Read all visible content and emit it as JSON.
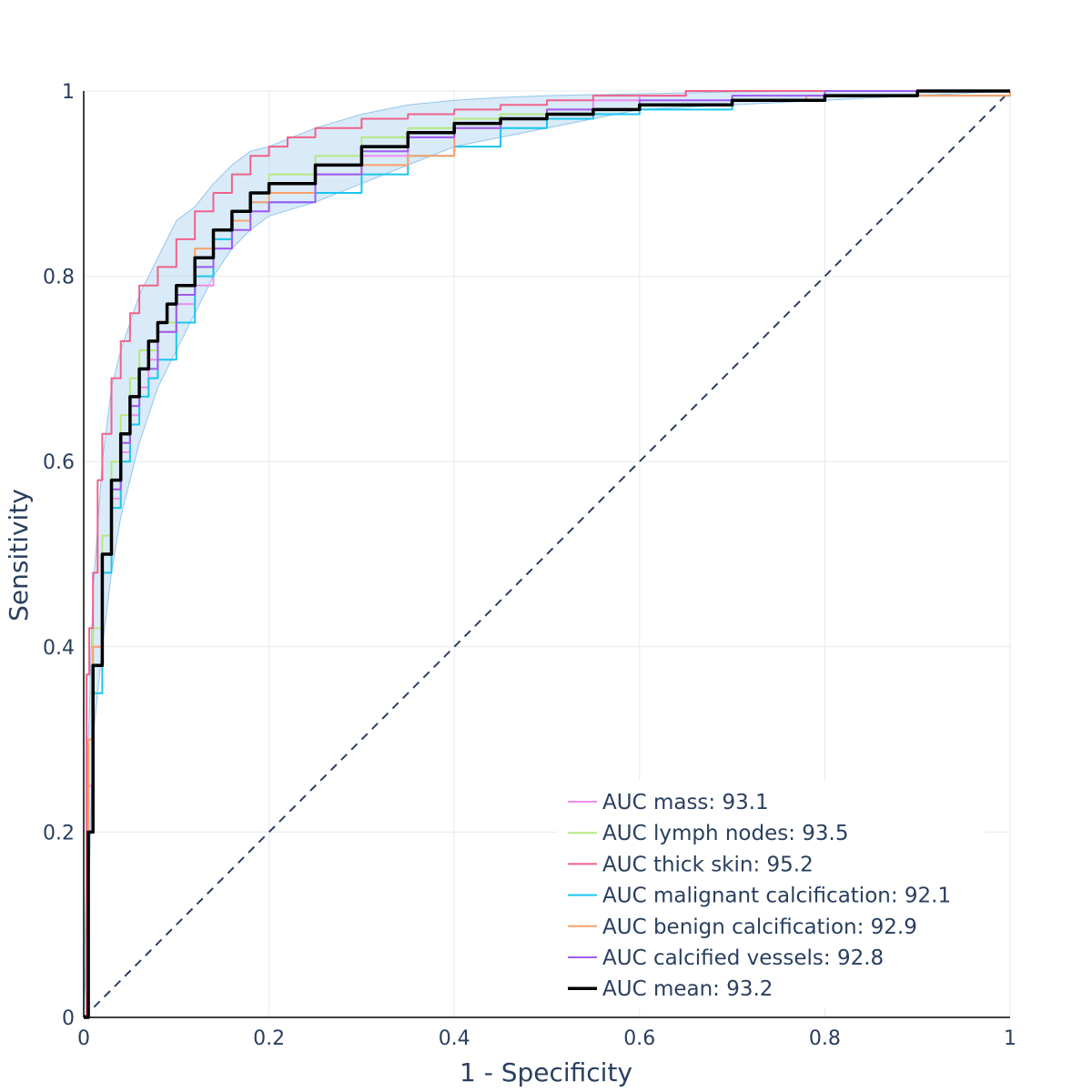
{
  "chart_data": {
    "type": "line",
    "title": "",
    "xlabel": "1 - Specificity",
    "ylabel": "Sensitivity",
    "xlim": [
      0,
      1
    ],
    "ylim": [
      0,
      1
    ],
    "x_ticks": [
      0,
      0.2,
      0.4,
      0.6,
      0.8,
      1
    ],
    "y_ticks": [
      0,
      0.2,
      0.4,
      0.6,
      0.8,
      1
    ],
    "x_tick_labels": [
      "0",
      "0.2",
      "0.4",
      "0.6",
      "0.8",
      "1"
    ],
    "y_tick_labels": [
      "0",
      "0.2",
      "0.4",
      "0.6",
      "0.8",
      "1"
    ],
    "grid": true,
    "legend_position": "bottom-right",
    "series": [
      {
        "name": "AUC mass: 93.1",
        "color": "#f18cf0",
        "points": [
          [
            0,
            0
          ],
          [
            0.005,
            0.25
          ],
          [
            0.01,
            0.4
          ],
          [
            0.02,
            0.5
          ],
          [
            0.03,
            0.56
          ],
          [
            0.04,
            0.61
          ],
          [
            0.05,
            0.65
          ],
          [
            0.06,
            0.68
          ],
          [
            0.07,
            0.71
          ],
          [
            0.08,
            0.74
          ],
          [
            0.1,
            0.77
          ],
          [
            0.12,
            0.79
          ],
          [
            0.14,
            0.83
          ],
          [
            0.16,
            0.86
          ],
          [
            0.18,
            0.87
          ],
          [
            0.2,
            0.88
          ],
          [
            0.25,
            0.91
          ],
          [
            0.3,
            0.93
          ],
          [
            0.35,
            0.95
          ],
          [
            0.4,
            0.96
          ],
          [
            0.45,
            0.97
          ],
          [
            0.5,
            0.98
          ],
          [
            0.55,
            0.99
          ],
          [
            0.6,
            0.995
          ],
          [
            0.65,
            1
          ],
          [
            0.8,
            1
          ],
          [
            1,
            1
          ]
        ]
      },
      {
        "name": "AUC lymph nodes: 93.5",
        "color": "#b6e880",
        "points": [
          [
            0,
            0
          ],
          [
            0.005,
            0.3
          ],
          [
            0.01,
            0.42
          ],
          [
            0.02,
            0.52
          ],
          [
            0.03,
            0.6
          ],
          [
            0.04,
            0.65
          ],
          [
            0.05,
            0.69
          ],
          [
            0.06,
            0.72
          ],
          [
            0.08,
            0.75
          ],
          [
            0.1,
            0.78
          ],
          [
            0.12,
            0.81
          ],
          [
            0.14,
            0.84
          ],
          [
            0.16,
            0.87
          ],
          [
            0.18,
            0.89
          ],
          [
            0.2,
            0.91
          ],
          [
            0.25,
            0.93
          ],
          [
            0.3,
            0.95
          ],
          [
            0.35,
            0.96
          ],
          [
            0.4,
            0.97
          ],
          [
            0.45,
            0.975
          ],
          [
            0.5,
            0.98
          ],
          [
            0.6,
            0.985
          ],
          [
            0.7,
            0.99
          ],
          [
            0.8,
            0.995
          ],
          [
            0.9,
            0.995
          ],
          [
            1,
            1
          ]
        ]
      },
      {
        "name": "AUC thick skin: 95.2",
        "color": "#f0628b",
        "points": [
          [
            0,
            0
          ],
          [
            0.003,
            0.37
          ],
          [
            0.006,
            0.42
          ],
          [
            0.01,
            0.48
          ],
          [
            0.015,
            0.58
          ],
          [
            0.02,
            0.63
          ],
          [
            0.03,
            0.69
          ],
          [
            0.04,
            0.73
          ],
          [
            0.05,
            0.76
          ],
          [
            0.06,
            0.79
          ],
          [
            0.08,
            0.81
          ],
          [
            0.1,
            0.84
          ],
          [
            0.12,
            0.87
          ],
          [
            0.14,
            0.89
          ],
          [
            0.16,
            0.91
          ],
          [
            0.18,
            0.93
          ],
          [
            0.2,
            0.94
          ],
          [
            0.22,
            0.95
          ],
          [
            0.25,
            0.96
          ],
          [
            0.3,
            0.97
          ],
          [
            0.35,
            0.975
          ],
          [
            0.4,
            0.98
          ],
          [
            0.45,
            0.985
          ],
          [
            0.5,
            0.99
          ],
          [
            0.55,
            0.995
          ],
          [
            0.65,
            1
          ],
          [
            1,
            1
          ]
        ]
      },
      {
        "name": "AUC malignant calcification: 92.1",
        "color": "#19c6ef",
        "points": [
          [
            0,
            0
          ],
          [
            0.005,
            0.2
          ],
          [
            0.01,
            0.35
          ],
          [
            0.02,
            0.48
          ],
          [
            0.03,
            0.55
          ],
          [
            0.04,
            0.6
          ],
          [
            0.05,
            0.64
          ],
          [
            0.06,
            0.67
          ],
          [
            0.07,
            0.69
          ],
          [
            0.08,
            0.71
          ],
          [
            0.1,
            0.75
          ],
          [
            0.12,
            0.8
          ],
          [
            0.14,
            0.84
          ],
          [
            0.16,
            0.87
          ],
          [
            0.18,
            0.88
          ],
          [
            0.2,
            0.88
          ],
          [
            0.25,
            0.89
          ],
          [
            0.3,
            0.91
          ],
          [
            0.35,
            0.93
          ],
          [
            0.4,
            0.94
          ],
          [
            0.45,
            0.96
          ],
          [
            0.5,
            0.97
          ],
          [
            0.55,
            0.975
          ],
          [
            0.6,
            0.98
          ],
          [
            0.7,
            0.99
          ],
          [
            0.8,
            0.995
          ],
          [
            1,
            1
          ]
        ]
      },
      {
        "name": "AUC benign calcification: 92.9",
        "color": "#fca16b",
        "points": [
          [
            0,
            0
          ],
          [
            0.005,
            0.3
          ],
          [
            0.01,
            0.4
          ],
          [
            0.02,
            0.5
          ],
          [
            0.03,
            0.57
          ],
          [
            0.04,
            0.62
          ],
          [
            0.05,
            0.66
          ],
          [
            0.06,
            0.7
          ],
          [
            0.08,
            0.74
          ],
          [
            0.1,
            0.79
          ],
          [
            0.12,
            0.83
          ],
          [
            0.14,
            0.85
          ],
          [
            0.16,
            0.86
          ],
          [
            0.18,
            0.88
          ],
          [
            0.2,
            0.89
          ],
          [
            0.25,
            0.91
          ],
          [
            0.3,
            0.92
          ],
          [
            0.35,
            0.93
          ],
          [
            0.4,
            0.96
          ],
          [
            0.45,
            0.97
          ],
          [
            0.5,
            0.98
          ],
          [
            0.6,
            0.985
          ],
          [
            0.7,
            0.99
          ],
          [
            0.78,
            0.995
          ],
          [
            1,
            1
          ]
        ]
      },
      {
        "name": "AUC calcified vessels: 92.8",
        "color": "#9d5cf5",
        "points": [
          [
            0,
            0
          ],
          [
            0.005,
            0.2
          ],
          [
            0.01,
            0.38
          ],
          [
            0.02,
            0.5
          ],
          [
            0.03,
            0.57
          ],
          [
            0.04,
            0.62
          ],
          [
            0.05,
            0.66
          ],
          [
            0.06,
            0.7
          ],
          [
            0.08,
            0.74
          ],
          [
            0.1,
            0.78
          ],
          [
            0.12,
            0.81
          ],
          [
            0.14,
            0.83
          ],
          [
            0.16,
            0.85
          ],
          [
            0.18,
            0.87
          ],
          [
            0.2,
            0.88
          ],
          [
            0.25,
            0.91
          ],
          [
            0.3,
            0.935
          ],
          [
            0.35,
            0.95
          ],
          [
            0.4,
            0.96
          ],
          [
            0.45,
            0.97
          ],
          [
            0.5,
            0.98
          ],
          [
            0.6,
            0.99
          ],
          [
            0.7,
            0.995
          ],
          [
            0.8,
            1
          ],
          [
            1,
            1
          ]
        ]
      },
      {
        "name": "AUC mean: 93.2",
        "color": "#000000",
        "points": [
          [
            0,
            0
          ],
          [
            0.005,
            0.2
          ],
          [
            0.01,
            0.38
          ],
          [
            0.02,
            0.5
          ],
          [
            0.03,
            0.58
          ],
          [
            0.04,
            0.63
          ],
          [
            0.05,
            0.67
          ],
          [
            0.06,
            0.7
          ],
          [
            0.07,
            0.73
          ],
          [
            0.08,
            0.75
          ],
          [
            0.09,
            0.77
          ],
          [
            0.1,
            0.79
          ],
          [
            0.12,
            0.82
          ],
          [
            0.14,
            0.85
          ],
          [
            0.16,
            0.87
          ],
          [
            0.18,
            0.89
          ],
          [
            0.2,
            0.9
          ],
          [
            0.25,
            0.92
          ],
          [
            0.3,
            0.94
          ],
          [
            0.35,
            0.955
          ],
          [
            0.4,
            0.965
          ],
          [
            0.45,
            0.97
          ],
          [
            0.5,
            0.975
          ],
          [
            0.55,
            0.98
          ],
          [
            0.6,
            0.985
          ],
          [
            0.7,
            0.99
          ],
          [
            0.8,
            0.995
          ],
          [
            0.9,
            1
          ],
          [
            1,
            1
          ]
        ]
      }
    ],
    "band": {
      "color": "#aad2f0",
      "upper": [
        [
          0,
          0
        ],
        [
          0.005,
          0.3
        ],
        [
          0.01,
          0.46
        ],
        [
          0.02,
          0.6
        ],
        [
          0.03,
          0.68
        ],
        [
          0.04,
          0.72
        ],
        [
          0.05,
          0.75
        ],
        [
          0.06,
          0.78
        ],
        [
          0.07,
          0.8
        ],
        [
          0.08,
          0.82
        ],
        [
          0.09,
          0.84
        ],
        [
          0.1,
          0.86
        ],
        [
          0.12,
          0.875
        ],
        [
          0.14,
          0.9
        ],
        [
          0.16,
          0.92
        ],
        [
          0.18,
          0.935
        ],
        [
          0.2,
          0.94
        ],
        [
          0.25,
          0.96
        ],
        [
          0.3,
          0.975
        ],
        [
          0.35,
          0.985
        ],
        [
          0.4,
          0.99
        ],
        [
          0.45,
          0.993
        ],
        [
          0.5,
          0.995
        ],
        [
          0.6,
          0.997
        ],
        [
          0.7,
          0.999
        ],
        [
          0.8,
          1
        ],
        [
          1,
          1
        ]
      ],
      "lower": [
        [
          0,
          0
        ],
        [
          0.005,
          0.12
        ],
        [
          0.01,
          0.3
        ],
        [
          0.02,
          0.4
        ],
        [
          0.03,
          0.48
        ],
        [
          0.04,
          0.54
        ],
        [
          0.05,
          0.58
        ],
        [
          0.06,
          0.62
        ],
        [
          0.07,
          0.65
        ],
        [
          0.08,
          0.68
        ],
        [
          0.09,
          0.7
        ],
        [
          0.1,
          0.72
        ],
        [
          0.12,
          0.76
        ],
        [
          0.14,
          0.8
        ],
        [
          0.16,
          0.83
        ],
        [
          0.18,
          0.85
        ],
        [
          0.2,
          0.865
        ],
        [
          0.25,
          0.88
        ],
        [
          0.3,
          0.9
        ],
        [
          0.35,
          0.92
        ],
        [
          0.4,
          0.94
        ],
        [
          0.45,
          0.95
        ],
        [
          0.5,
          0.96
        ],
        [
          0.55,
          0.97
        ],
        [
          0.6,
          0.98
        ],
        [
          0.7,
          0.985
        ],
        [
          0.8,
          0.99
        ],
        [
          0.9,
          0.995
        ],
        [
          1,
          1
        ]
      ]
    },
    "diagonal": [
      [
        0,
        0
      ],
      [
        1,
        1
      ]
    ]
  }
}
